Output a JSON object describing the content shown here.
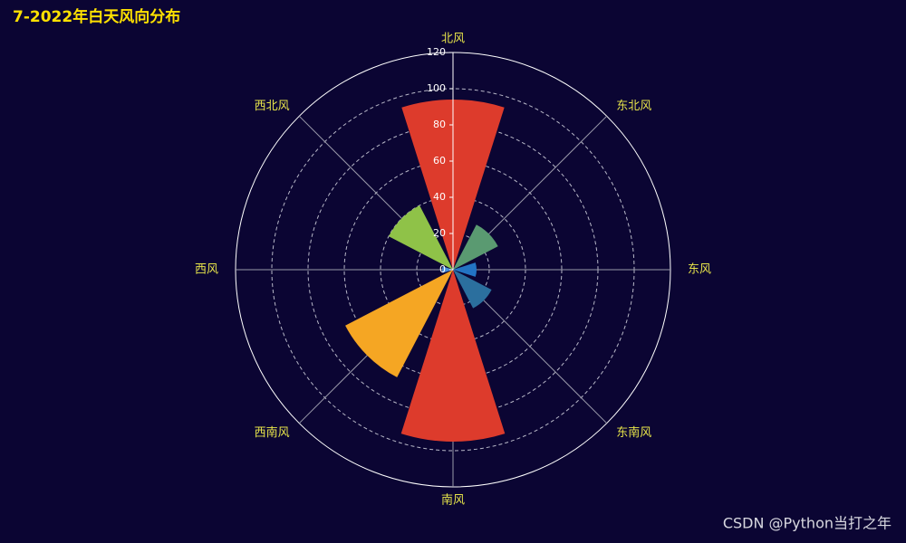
{
  "chart_data": {
    "type": "polar-bar",
    "title": "7-2022年白天风向分布",
    "categories": [
      "北风",
      "东北风",
      "东风",
      "东南风",
      "南风",
      "西南风",
      "西风",
      "西北风"
    ],
    "values": [
      94,
      28,
      13,
      24,
      95,
      67,
      6,
      40
    ],
    "colors": [
      "#dd3b2c",
      "#5a9a71",
      "#2374c4",
      "#2b6f9e",
      "#dd3b2c",
      "#f5a623",
      "#4a8fd8",
      "#8fc248"
    ],
    "rlim": [
      0,
      120
    ],
    "rticks": [
      0,
      20,
      40,
      60,
      80,
      100,
      120
    ],
    "grid": true
  },
  "watermark": "CSDN @Python当打之年"
}
